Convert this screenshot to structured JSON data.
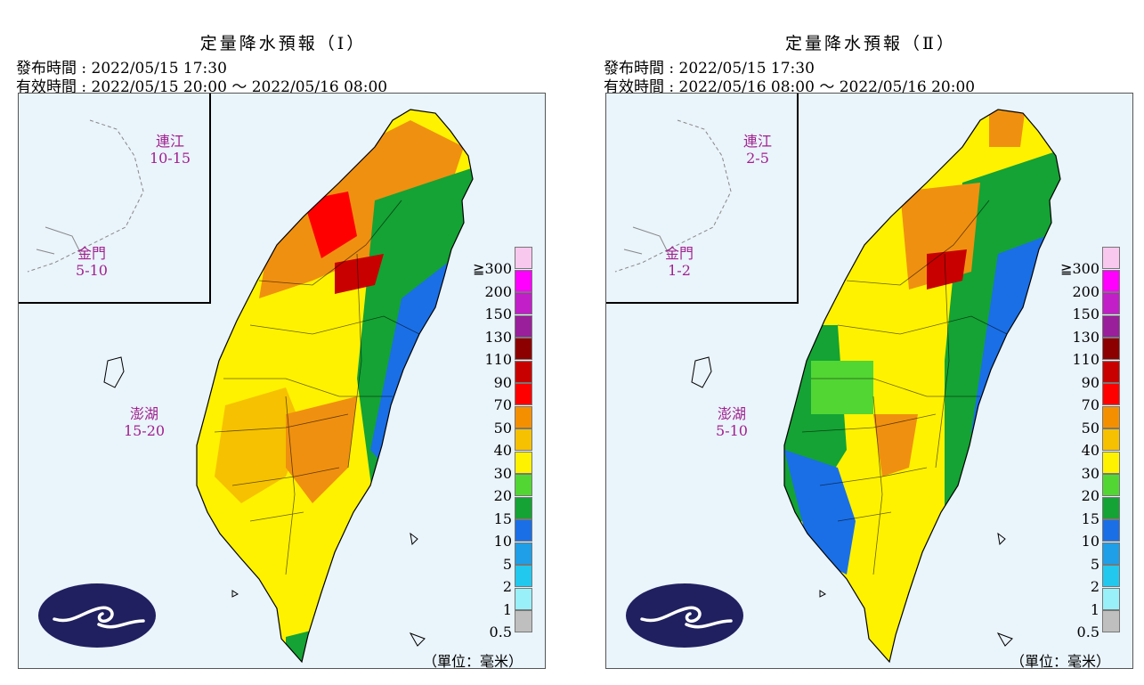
{
  "panels": [
    {
      "title": "定量降水預報（Ⅰ）",
      "issue_time": "發布時間 : 2022/05/15 17:30",
      "valid_time": "有效時間 : 2022/05/15 20:00 ～ 2022/05/16 08:00",
      "regions": [
        {
          "name": "連江",
          "range": "10-15"
        },
        {
          "name": "金門",
          "range": "5-10"
        },
        {
          "name": "澎湖",
          "range": "15-20"
        }
      ],
      "dominant_colors": {
        "west": "#f6c100",
        "north": "#f09010",
        "east": "#14a334",
        "southeast": "#1a6fe6"
      }
    },
    {
      "title": "定量降水預報（Ⅱ）",
      "issue_time": "發布時間 : 2022/05/15 17:30",
      "valid_time": "有效時間 : 2022/05/16 08:00 ～ 2022/05/16 20:00",
      "regions": [
        {
          "name": "連江",
          "range": "2-5"
        },
        {
          "name": "金門",
          "range": "1-2"
        },
        {
          "name": "澎湖",
          "range": "5-10"
        }
      ],
      "dominant_colors": {
        "west": "#14a334",
        "north": "#f6c100",
        "east": "#14a334",
        "southeast": "#1a6fe6"
      }
    }
  ],
  "legend": {
    "labels": [
      "≧300",
      "200",
      "150",
      "130",
      "110",
      "90",
      "70",
      "50",
      "40",
      "30",
      "20",
      "15",
      "10",
      "5",
      "2",
      "1",
      "0.5"
    ],
    "colors": [
      "#f9c8ee",
      "#ff00ff",
      "#c21fc9",
      "#9a1f9a",
      "#8c0000",
      "#c80000",
      "#ff0000",
      "#f49000",
      "#f6c100",
      "#fff200",
      "#52d633",
      "#14a334",
      "#1a6fe6",
      "#1e9fe7",
      "#22c8ee",
      "#99f0f8",
      "#bfbfbf"
    ],
    "unit": "（單位：毫米）"
  },
  "logo": "cwb-cloud-logo"
}
